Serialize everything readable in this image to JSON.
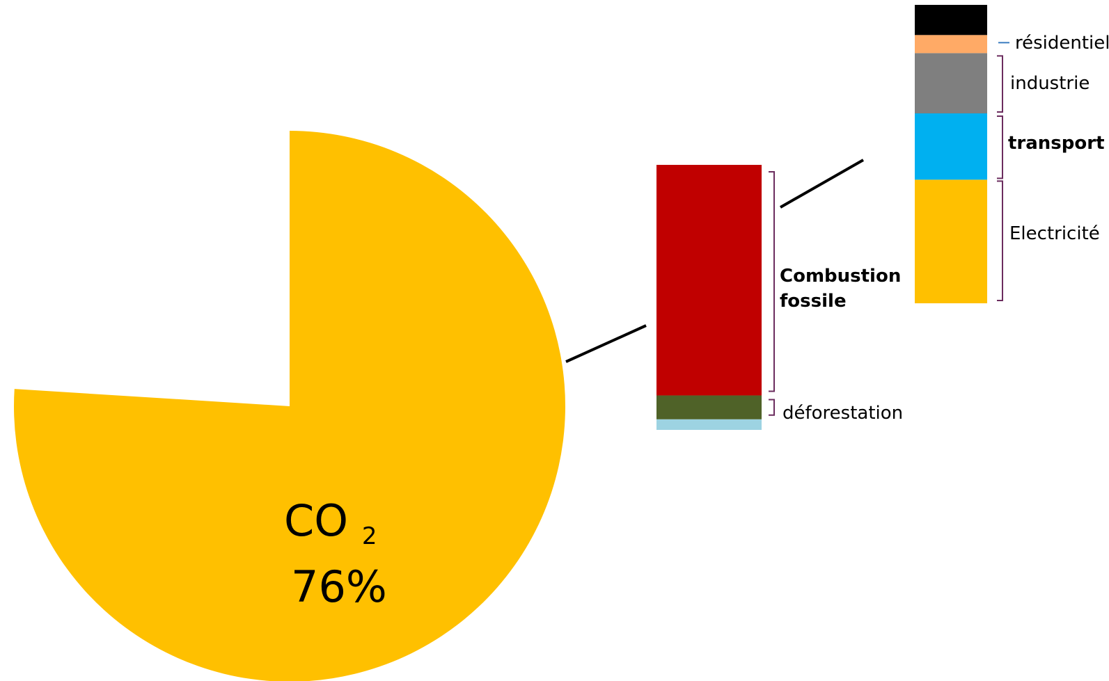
{
  "chart_data": [
    {
      "type": "pie",
      "slices": [
        {
          "label": "CO",
          "subscript": "2",
          "percent_label": "76%",
          "value": 76,
          "color": "#FFC000"
        },
        {
          "label": "",
          "value": 24,
          "color": "#FFFFFF"
        }
      ]
    },
    {
      "type": "bar",
      "stacked": true,
      "segments": [
        {
          "label": "",
          "value": 4,
          "color": "#9DD3E2"
        },
        {
          "label": "déforestation",
          "value": 9,
          "color": "#4F6228"
        },
        {
          "label": "Combustion fossile",
          "value": 87,
          "color": "#C00000",
          "bold": true
        }
      ]
    },
    {
      "type": "bar",
      "stacked": true,
      "segments": [
        {
          "label": "Electricité",
          "value": 41,
          "color": "#FFC000",
          "bold": false
        },
        {
          "label": "transport",
          "value": 22,
          "color": "#00B0F0",
          "bold": true
        },
        {
          "label": "industrie",
          "value": 20,
          "color": "#7F7F7F",
          "bold": false
        },
        {
          "label": "résidentiel",
          "value": 6,
          "color": "#FFAA66",
          "bold": false
        },
        {
          "label": "",
          "value": 10,
          "color": "#000000"
        }
      ]
    }
  ],
  "colors": {
    "bracket": "#6B2C5E",
    "connector": "#000000",
    "tick": "#3A7CC0"
  }
}
